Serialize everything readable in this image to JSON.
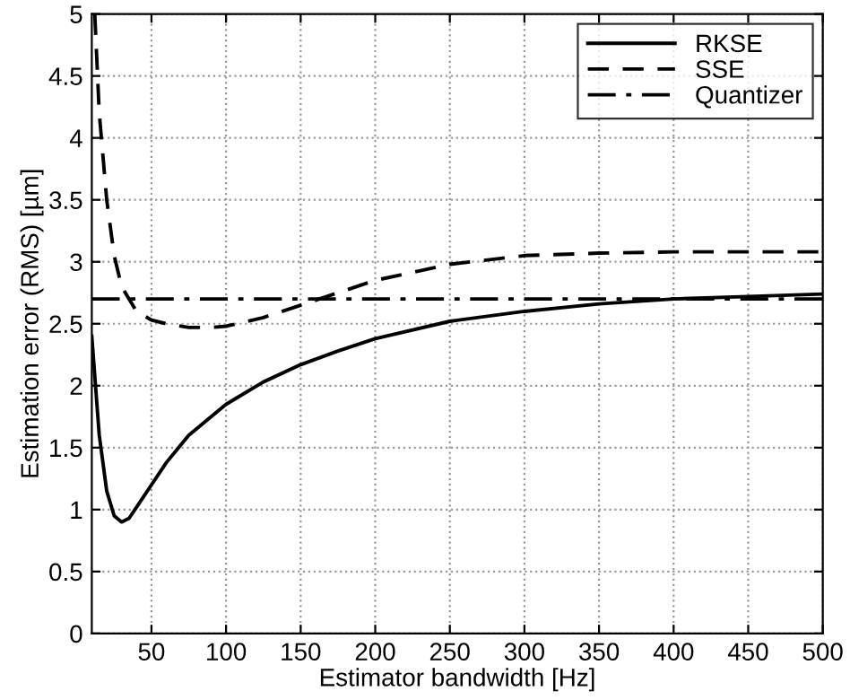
{
  "chart_data": {
    "type": "line",
    "xlabel": "Estimator bandwidth [Hz]",
    "ylabel": "Estimation error (RMS) [µm]",
    "xlim": [
      10,
      500
    ],
    "ylim": [
      0,
      5
    ],
    "xticks": [
      50,
      100,
      150,
      200,
      250,
      300,
      350,
      400,
      450,
      500
    ],
    "yticks": [
      0,
      0.5,
      1,
      1.5,
      2,
      2.5,
      3,
      3.5,
      4,
      4.5,
      5
    ],
    "grid": true,
    "legend": "top right",
    "marker": "none",
    "series": [
      {
        "name": "RKSE",
        "color": "#000000",
        "line_style": "solid",
        "x": [
          10,
          15,
          20,
          25,
          30,
          35,
          40,
          50,
          60,
          75,
          100,
          125,
          150,
          175,
          200,
          250,
          300,
          350,
          400,
          450,
          500
        ],
        "values": [
          2.4,
          1.6,
          1.15,
          0.95,
          0.9,
          0.93,
          1.02,
          1.2,
          1.38,
          1.6,
          1.85,
          2.03,
          2.17,
          2.28,
          2.38,
          2.52,
          2.6,
          2.66,
          2.7,
          2.72,
          2.74
        ]
      },
      {
        "name": "SSE",
        "color": "#000000",
        "line_style": "dashed",
        "x": [
          12,
          15,
          20,
          25,
          30,
          40,
          50,
          60,
          75,
          90,
          100,
          125,
          150,
          175,
          200,
          250,
          300,
          350,
          400,
          500
        ],
        "values": [
          5.0,
          4.2,
          3.5,
          3.05,
          2.8,
          2.6,
          2.53,
          2.5,
          2.47,
          2.47,
          2.48,
          2.55,
          2.65,
          2.75,
          2.85,
          2.98,
          3.05,
          3.07,
          3.08,
          3.08
        ]
      },
      {
        "name": "Quantizer",
        "color": "#000000",
        "line_style": "dashdot",
        "x": [
          10,
          500
        ],
        "values": [
          2.7,
          2.7
        ]
      }
    ]
  }
}
